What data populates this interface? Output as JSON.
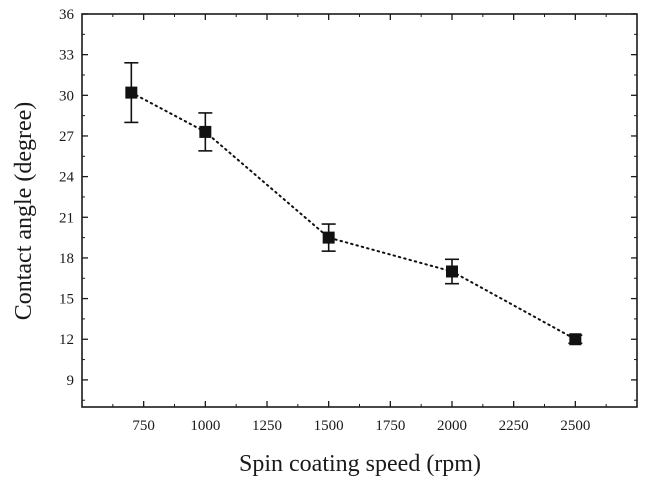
{
  "chart_data": {
    "type": "scatter",
    "title": "",
    "xlabel": "Spin coating speed (rpm)",
    "ylabel": "Contact angle (degree)",
    "xlim": [
      500,
      2750
    ],
    "ylim": [
      7,
      36
    ],
    "xticks": [
      750,
      1000,
      1250,
      1500,
      1750,
      2000,
      2250,
      2500
    ],
    "yticks": [
      9,
      12,
      15,
      18,
      21,
      24,
      27,
      30,
      33,
      36
    ],
    "grid": false,
    "connector": "dotted",
    "series": [
      {
        "x": [
          700,
          1000,
          1500,
          2000,
          2500
        ],
        "y": [
          30.2,
          27.3,
          19.5,
          17.0,
          12.0
        ],
        "error": [
          2.2,
          1.4,
          1.0,
          0.9,
          0.3
        ],
        "marker": "square",
        "color": "#111111"
      }
    ]
  }
}
